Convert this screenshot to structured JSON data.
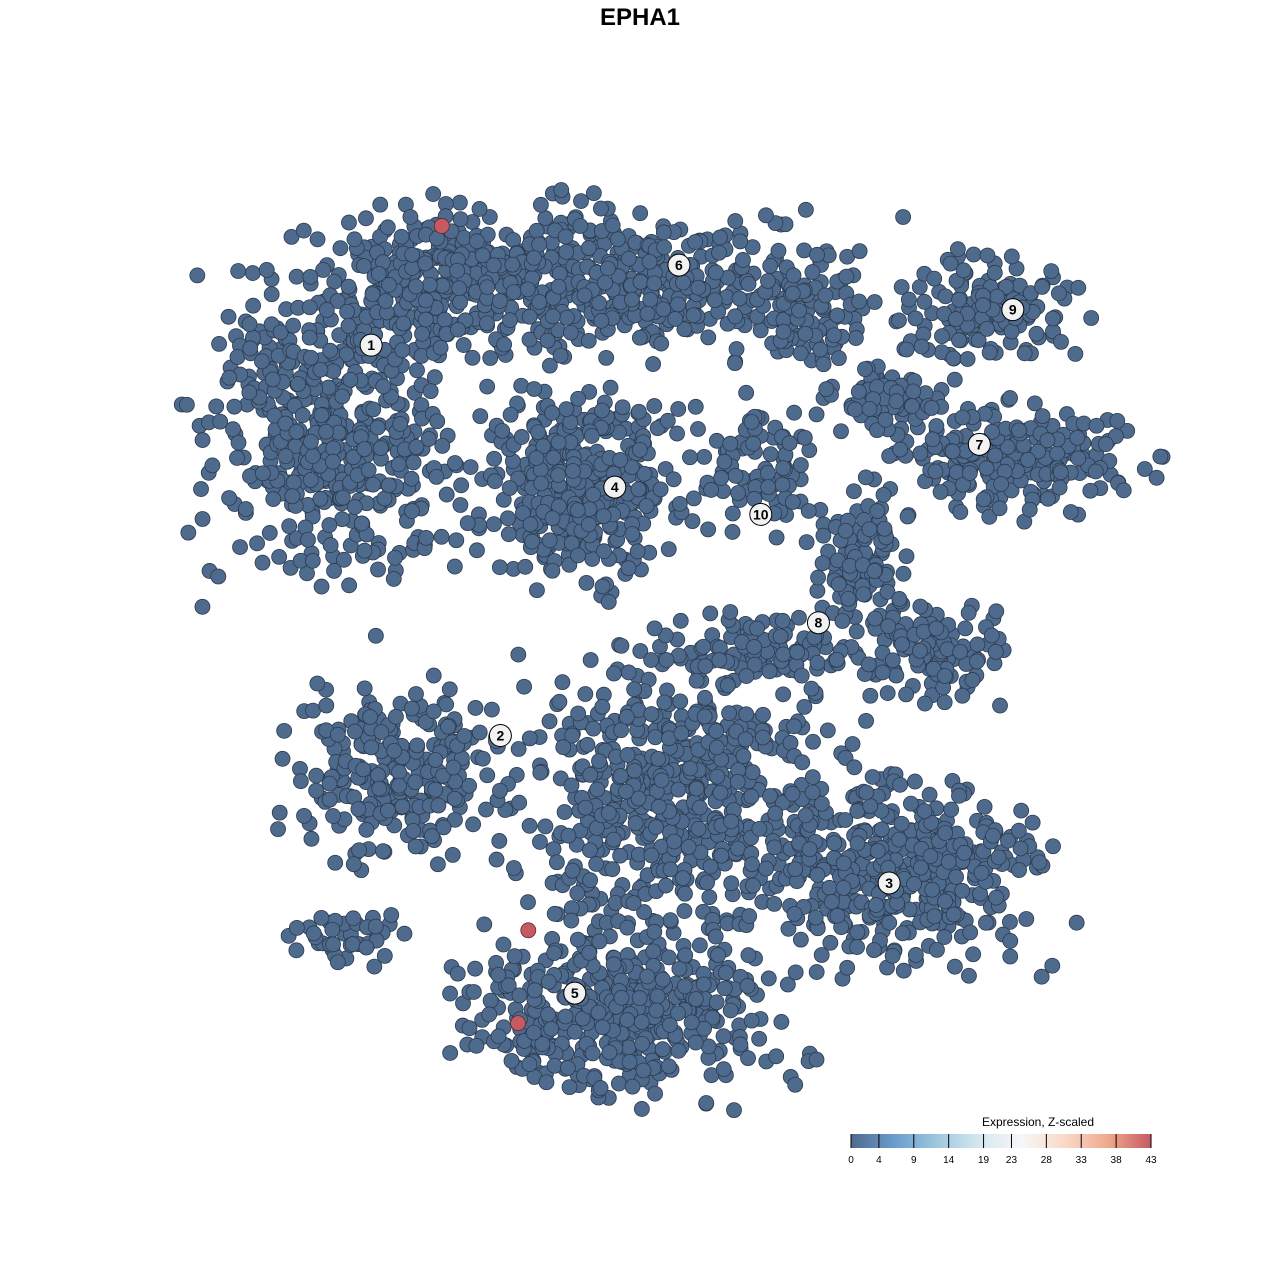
{
  "chart_data": {
    "type": "scatter",
    "title": "EPHA1",
    "xlabel": "",
    "ylabel": "",
    "xlim": [
      -50,
      50
    ],
    "ylim": [
      -50,
      50
    ],
    "grid": false,
    "point_color_default": "#4e6a8d",
    "point_color_high": "#c65a63",
    "clusters": [
      {
        "label": "1",
        "label_pos": [
          -31.6,
          32.4
        ],
        "groups": [
          {
            "center": [
              -36,
              24.2
            ],
            "spread": [
              11.8,
              15.4
            ],
            "n": 520
          },
          {
            "center": [
              -21,
              39.6
            ],
            "spread": [
              14,
              6.6
            ],
            "n": 320
          }
        ]
      },
      {
        "label": "6",
        "label_pos": [
          1.5,
          41.2
        ],
        "groups": [
          {
            "center": [
              -1.6,
              39.6
            ],
            "spread": [
              18.3,
              6.6
            ],
            "n": 360
          },
          {
            "center": [
              14.5,
              35.2
            ],
            "spread": [
              5.4,
              4.4
            ],
            "n": 80
          }
        ]
      },
      {
        "label": "4",
        "label_pos": [
          -5.4,
          16.8
        ],
        "groups": [
          {
            "center": [
              -9.1,
              16.5
            ],
            "spread": [
              8.6,
              8.8
            ],
            "n": 360
          }
        ]
      },
      {
        "label": "10",
        "label_pos": [
          10.3,
          13.8
        ],
        "groups": [
          {
            "center": [
              10.2,
              18.7
            ],
            "spread": [
              6.5,
              5.5
            ],
            "n": 90
          }
        ]
      },
      {
        "label": "9",
        "label_pos": [
          37.4,
          36.3
        ],
        "groups": [
          {
            "center": [
              35,
              36.3
            ],
            "spread": [
              8.6,
              4.9
            ],
            "n": 140
          }
        ]
      },
      {
        "label": "7",
        "label_pos": [
          33.8,
          21.5
        ],
        "groups": [
          {
            "center": [
              37.1,
              19.8
            ],
            "spread": [
              12,
              5
            ],
            "n": 220
          },
          {
            "center": [
              24.2,
              26.4
            ],
            "spread": [
              5.4,
              3.3
            ],
            "n": 80
          }
        ]
      },
      {
        "label": "8",
        "label_pos": [
          16.5,
          1.9
        ],
        "groups": [
          {
            "center": [
              21,
              8.8
            ],
            "spread": [
              4.3,
              6.6
            ],
            "n": 100
          },
          {
            "center": [
              28,
              -1.6
            ],
            "spread": [
              6.5,
              4.4
            ],
            "n": 120
          },
          {
            "center": [
              10.2,
              -1.1
            ],
            "spread": [
              8.6,
              3.3
            ],
            "n": 100
          }
        ]
      },
      {
        "label": "2",
        "label_pos": [
          -17.7,
          -10.5
        ],
        "groups": [
          {
            "center": [
              -28.5,
              -14.3
            ],
            "spread": [
              9.7,
              7.7
            ],
            "n": 260
          },
          {
            "center": [
              -33.9,
              -32.4
            ],
            "spread": [
              5.4,
              2.7
            ],
            "n": 40
          }
        ]
      },
      {
        "label": "3",
        "label_pos": [
          24.1,
          -26.7
        ],
        "groups": [
          {
            "center": [
              1.6,
              -17.6
            ],
            "spread": [
              14,
              13
            ],
            "n": 600
          },
          {
            "center": [
              25.3,
              -25.3
            ],
            "spread": [
              13,
              8.8
            ],
            "n": 420
          }
        ]
      },
      {
        "label": "5",
        "label_pos": [
          -9.7,
          -38.8
        ],
        "groups": [
          {
            "center": [
              -4.8,
              -40.7
            ],
            "spread": [
              14,
              8
            ],
            "n": 450
          }
        ]
      }
    ],
    "high_points": [
      {
        "x": -24,
        "y": 45.5,
        "value": 43
      },
      {
        "x": -14.7,
        "y": -31.9,
        "value": 43
      },
      {
        "x": -15.8,
        "y": -42.1,
        "value": 43
      }
    ],
    "legend": {
      "title": "Expression, Z-scaled",
      "placement": "bottom-right",
      "ticks": [
        "0",
        "4",
        "9",
        "14",
        "19",
        "23",
        "28",
        "33",
        "38",
        "43"
      ],
      "range": [
        0,
        43
      ],
      "colors": [
        "#4e6a8d",
        "#6a9ccc",
        "#9dc7de",
        "#d6e7f1",
        "#f7f7f7",
        "#f9d9c8",
        "#efa98c",
        "#c65a63"
      ]
    }
  }
}
